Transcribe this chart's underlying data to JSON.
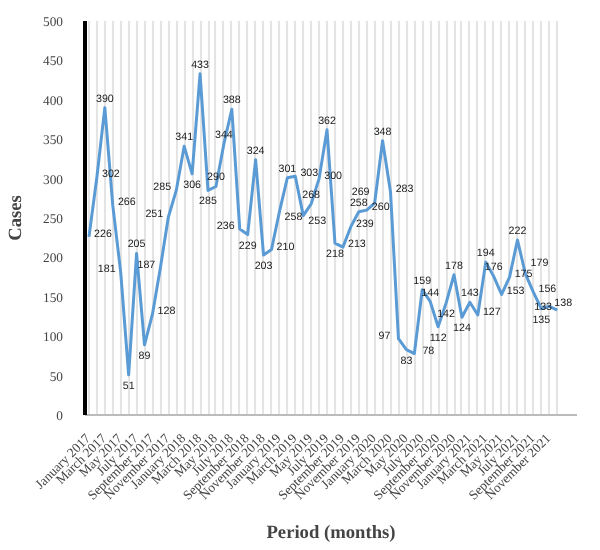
{
  "chart_data": {
    "type": "line",
    "xlabel": "Period (months)",
    "ylabel": "Cases",
    "categories": [
      "January 2017",
      null,
      "March 2017",
      null,
      "May 2017",
      null,
      "July 2017",
      null,
      "September 2017",
      null,
      "November 2017",
      null,
      "January 2018",
      null,
      "March 2018",
      null,
      "May 2018",
      null,
      "July 2018",
      null,
      "September 2018",
      null,
      "November 2018",
      null,
      "January 2019",
      null,
      "March 2019",
      null,
      "May 2019",
      null,
      "July 2019",
      null,
      "September 2019",
      null,
      "November 2019",
      null,
      "January 2020",
      null,
      "March 2020",
      null,
      "May 2020",
      null,
      "July 2020",
      null,
      "September 2020",
      null,
      "November 2020",
      null,
      "January 2021",
      null,
      "March 2021",
      null,
      "May 2021",
      null,
      "July 2021",
      null,
      "September 2021",
      null,
      "November 2021",
      null
    ],
    "series": [
      {
        "color": "#5b9bd5",
        "values": [
          226,
          302,
          390,
          266,
          181,
          51,
          205,
          89,
          128,
          187,
          251,
          285,
          341,
          306,
          433,
          285,
          290,
          344,
          388,
          236,
          229,
          324,
          203,
          210,
          258,
          301,
          303,
          253,
          268,
          300,
          362,
          218,
          213,
          239,
          258,
          260,
          269,
          348,
          283,
          97,
          83,
          78,
          159,
          144,
          112,
          142,
          178,
          124,
          143,
          127,
          194,
          176,
          153,
          175,
          222,
          179,
          156,
          135,
          138,
          133
        ]
      }
    ],
    "ylim": [
      0,
      500
    ],
    "yticks": [
      0,
      50,
      100,
      150,
      200,
      250,
      300,
      350,
      400,
      450,
      500
    ],
    "grid": "x",
    "data_labels": true,
    "marker": "none",
    "line_style": "solid"
  }
}
